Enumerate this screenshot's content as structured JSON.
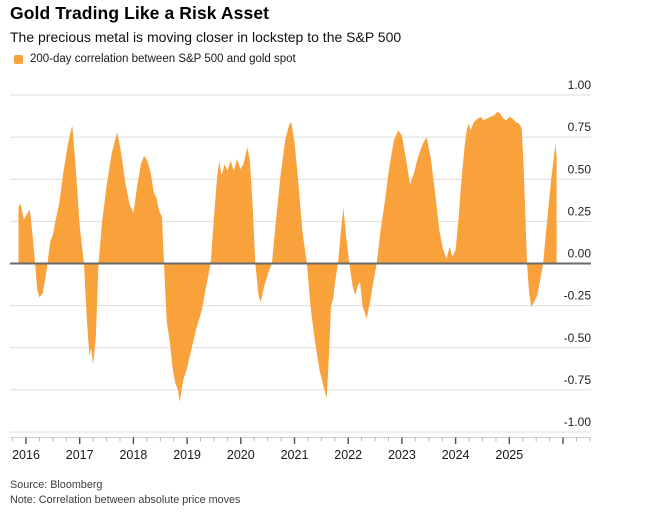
{
  "header": {
    "title": "Gold Trading Like a Risk Asset",
    "subtitle": "The precious metal is moving closer in lockstep to the S&P 500"
  },
  "legend": {
    "label": "200-day correlation between S&P 500 and gold spot",
    "swatch_color": "#F9A13B"
  },
  "chart_data": {
    "type": "area",
    "title": "Gold Trading Like a Risk Asset",
    "subtitle": "The precious metal is moving closer in lockstep to the S&P 500",
    "series_name": "200-day correlation between S&P 500 and gold spot",
    "xlabel": "",
    "ylabel": "",
    "grid": true,
    "legend_position": "top-left",
    "x_range": [
      2015.75,
      2026.5
    ],
    "ylim": [
      -1.0,
      1.0
    ],
    "y_ticks": {
      "values": [
        1.0,
        0.75,
        0.5,
        0.25,
        0.0,
        -0.25,
        -0.5,
        -0.75,
        -1.0
      ],
      "labels": [
        "1.00",
        "0.75",
        "0.50",
        "0.25",
        "0.00",
        "-0.25",
        "-0.50",
        "-0.75",
        "-1.00"
      ]
    },
    "x_ticks": {
      "values": [
        2016,
        2017,
        2018,
        2019,
        2020,
        2021,
        2022,
        2023,
        2024,
        2025
      ],
      "labels": [
        "2016",
        "2017",
        "2018",
        "2019",
        "2020",
        "2021",
        "2022",
        "2023",
        "2024",
        "2025"
      ],
      "minor_step": 0.25
    },
    "colors": {
      "area": "#F9A13B",
      "grid": "#DEDEDE",
      "zero_line": "#6A6A6A",
      "axis_line": "#CFCFCF",
      "axis_tick_major": "#4D4D4D",
      "axis_tick_minor": "#B8B8B8"
    },
    "points": [
      [
        2015.86,
        0.34
      ],
      [
        2015.9,
        0.35
      ],
      [
        2015.96,
        0.26
      ],
      [
        2016.03,
        0.3
      ],
      [
        2016.07,
        0.32
      ],
      [
        2016.12,
        0.18
      ],
      [
        2016.17,
        0.0
      ],
      [
        2016.21,
        -0.16
      ],
      [
        2016.25,
        -0.2
      ],
      [
        2016.31,
        -0.18
      ],
      [
        2016.36,
        -0.09
      ],
      [
        2016.4,
        0.0
      ],
      [
        2016.45,
        0.13
      ],
      [
        2016.5,
        0.17
      ],
      [
        2016.54,
        0.24
      ],
      [
        2016.62,
        0.36
      ],
      [
        2016.7,
        0.55
      ],
      [
        2016.78,
        0.71
      ],
      [
        2016.86,
        0.82
      ],
      [
        2016.92,
        0.6
      ],
      [
        2017.0,
        0.22
      ],
      [
        2017.08,
        0.0
      ],
      [
        2017.13,
        -0.32
      ],
      [
        2017.18,
        -0.55
      ],
      [
        2017.21,
        -0.5
      ],
      [
        2017.25,
        -0.6
      ],
      [
        2017.3,
        -0.44
      ],
      [
        2017.35,
        0.0
      ],
      [
        2017.42,
        0.26
      ],
      [
        2017.5,
        0.46
      ],
      [
        2017.6,
        0.66
      ],
      [
        2017.7,
        0.78
      ],
      [
        2017.77,
        0.66
      ],
      [
        2017.85,
        0.48
      ],
      [
        2017.93,
        0.35
      ],
      [
        2018.0,
        0.3
      ],
      [
        2018.07,
        0.46
      ],
      [
        2018.14,
        0.59
      ],
      [
        2018.2,
        0.64
      ],
      [
        2018.26,
        0.61
      ],
      [
        2018.32,
        0.54
      ],
      [
        2018.38,
        0.42
      ],
      [
        2018.43,
        0.39
      ],
      [
        2018.48,
        0.31
      ],
      [
        2018.53,
        0.28
      ],
      [
        2018.57,
        0.0
      ],
      [
        2018.62,
        -0.34
      ],
      [
        2018.68,
        -0.47
      ],
      [
        2018.73,
        -0.62
      ],
      [
        2018.78,
        -0.71
      ],
      [
        2018.83,
        -0.75
      ],
      [
        2018.86,
        -0.82
      ],
      [
        2018.89,
        -0.77
      ],
      [
        2018.93,
        -0.69
      ],
      [
        2019.0,
        -0.62
      ],
      [
        2019.08,
        -0.51
      ],
      [
        2019.17,
        -0.39
      ],
      [
        2019.27,
        -0.28
      ],
      [
        2019.36,
        -0.13
      ],
      [
        2019.44,
        0.0
      ],
      [
        2019.5,
        0.28
      ],
      [
        2019.56,
        0.52
      ],
      [
        2019.6,
        0.61
      ],
      [
        2019.64,
        0.52
      ],
      [
        2019.7,
        0.59
      ],
      [
        2019.75,
        0.55
      ],
      [
        2019.81,
        0.61
      ],
      [
        2019.87,
        0.55
      ],
      [
        2019.93,
        0.62
      ],
      [
        2019.99,
        0.56
      ],
      [
        2020.05,
        0.59
      ],
      [
        2020.12,
        0.69
      ],
      [
        2020.17,
        0.61
      ],
      [
        2020.22,
        0.35
      ],
      [
        2020.27,
        0.0
      ],
      [
        2020.33,
        -0.19
      ],
      [
        2020.37,
        -0.23
      ],
      [
        2020.44,
        -0.13
      ],
      [
        2020.52,
        -0.05
      ],
      [
        2020.58,
        0.0
      ],
      [
        2020.65,
        0.24
      ],
      [
        2020.74,
        0.52
      ],
      [
        2020.83,
        0.74
      ],
      [
        2020.9,
        0.82
      ],
      [
        2020.94,
        0.84
      ],
      [
        2021.0,
        0.72
      ],
      [
        2021.07,
        0.48
      ],
      [
        2021.15,
        0.18
      ],
      [
        2021.23,
        0.0
      ],
      [
        2021.3,
        -0.26
      ],
      [
        2021.38,
        -0.46
      ],
      [
        2021.47,
        -0.64
      ],
      [
        2021.55,
        -0.74
      ],
      [
        2021.6,
        -0.8
      ],
      [
        2021.64,
        -0.55
      ],
      [
        2021.68,
        -0.25
      ],
      [
        2021.72,
        -0.21
      ],
      [
        2021.76,
        -0.1
      ],
      [
        2021.81,
        0.0
      ],
      [
        2021.86,
        0.18
      ],
      [
        2021.91,
        0.33
      ],
      [
        2021.96,
        0.16
      ],
      [
        2022.02,
        0.0
      ],
      [
        2022.08,
        -0.13
      ],
      [
        2022.13,
        -0.19
      ],
      [
        2022.18,
        -0.13
      ],
      [
        2022.22,
        -0.11
      ],
      [
        2022.27,
        -0.26
      ],
      [
        2022.31,
        -0.29
      ],
      [
        2022.34,
        -0.33
      ],
      [
        2022.4,
        -0.24
      ],
      [
        2022.47,
        -0.11
      ],
      [
        2022.53,
        0.0
      ],
      [
        2022.6,
        0.19
      ],
      [
        2022.68,
        0.36
      ],
      [
        2022.76,
        0.56
      ],
      [
        2022.85,
        0.73
      ],
      [
        2022.93,
        0.79
      ],
      [
        2023.0,
        0.76
      ],
      [
        2023.07,
        0.63
      ],
      [
        2023.15,
        0.47
      ],
      [
        2023.22,
        0.53
      ],
      [
        2023.3,
        0.63
      ],
      [
        2023.39,
        0.71
      ],
      [
        2023.46,
        0.75
      ],
      [
        2023.54,
        0.62
      ],
      [
        2023.62,
        0.41
      ],
      [
        2023.7,
        0.19
      ],
      [
        2023.77,
        0.08
      ],
      [
        2023.83,
        0.03
      ],
      [
        2023.89,
        0.1
      ],
      [
        2023.94,
        0.04
      ],
      [
        2024.0,
        0.08
      ],
      [
        2024.05,
        0.25
      ],
      [
        2024.11,
        0.5
      ],
      [
        2024.17,
        0.7
      ],
      [
        2024.21,
        0.8
      ],
      [
        2024.25,
        0.83
      ],
      [
        2024.28,
        0.79
      ],
      [
        2024.34,
        0.84
      ],
      [
        2024.41,
        0.86
      ],
      [
        2024.47,
        0.87
      ],
      [
        2024.52,
        0.85
      ],
      [
        2024.58,
        0.86
      ],
      [
        2024.65,
        0.87
      ],
      [
        2024.72,
        0.88
      ],
      [
        2024.78,
        0.9
      ],
      [
        2024.83,
        0.89
      ],
      [
        2024.89,
        0.86
      ],
      [
        2024.94,
        0.85
      ],
      [
        2025.0,
        0.87
      ],
      [
        2025.06,
        0.86
      ],
      [
        2025.12,
        0.84
      ],
      [
        2025.18,
        0.83
      ],
      [
        2025.23,
        0.8
      ],
      [
        2025.27,
        0.55
      ],
      [
        2025.33,
        0.0
      ],
      [
        2025.37,
        -0.18
      ],
      [
        2025.41,
        -0.26
      ],
      [
        2025.46,
        -0.23
      ],
      [
        2025.52,
        -0.19
      ],
      [
        2025.58,
        -0.09
      ],
      [
        2025.63,
        0.0
      ],
      [
        2025.7,
        0.24
      ],
      [
        2025.78,
        0.5
      ],
      [
        2025.86,
        0.71
      ],
      [
        2025.88,
        0.63
      ]
    ]
  },
  "footer": {
    "source": "Source: Bloomberg",
    "note": "Note: Correlation between absolute price moves"
  }
}
